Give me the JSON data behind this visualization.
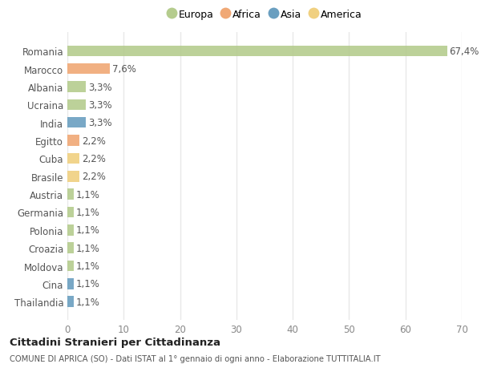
{
  "countries": [
    "Romania",
    "Marocco",
    "Albania",
    "Ucraina",
    "India",
    "Egitto",
    "Cuba",
    "Brasile",
    "Austria",
    "Germania",
    "Polonia",
    "Croazia",
    "Moldova",
    "Cina",
    "Thailandia"
  ],
  "values": [
    67.4,
    7.6,
    3.3,
    3.3,
    3.3,
    2.2,
    2.2,
    2.2,
    1.1,
    1.1,
    1.1,
    1.1,
    1.1,
    1.1,
    1.1
  ],
  "labels": [
    "67,4%",
    "7,6%",
    "3,3%",
    "3,3%",
    "3,3%",
    "2,2%",
    "2,2%",
    "2,2%",
    "1,1%",
    "1,1%",
    "1,1%",
    "1,1%",
    "1,1%",
    "1,1%",
    "1,1%"
  ],
  "continents": [
    "Europa",
    "Africa",
    "Europa",
    "Europa",
    "Asia",
    "Africa",
    "America",
    "America",
    "Europa",
    "Europa",
    "Europa",
    "Europa",
    "Europa",
    "Asia",
    "Asia"
  ],
  "continent_colors": {
    "Europa": "#b5cc8e",
    "Africa": "#f0a875",
    "Asia": "#6a9fc0",
    "America": "#f0d080"
  },
  "legend_order": [
    "Europa",
    "Africa",
    "Asia",
    "America"
  ],
  "legend_colors": [
    "#b5cc8e",
    "#f0a875",
    "#6a9fc0",
    "#f0d080"
  ],
  "xlim": [
    0,
    70
  ],
  "xticks": [
    0,
    10,
    20,
    30,
    40,
    50,
    60,
    70
  ],
  "title": "Cittadini Stranieri per Cittadinanza",
  "subtitle": "COMUNE DI APRICA (SO) - Dati ISTAT al 1° gennaio di ogni anno - Elaborazione TUTTITALIA.IT",
  "bg_color": "#ffffff",
  "grid_color": "#e8e8e8",
  "bar_height": 0.6,
  "label_fontsize": 8.5,
  "tick_fontsize": 8.5
}
